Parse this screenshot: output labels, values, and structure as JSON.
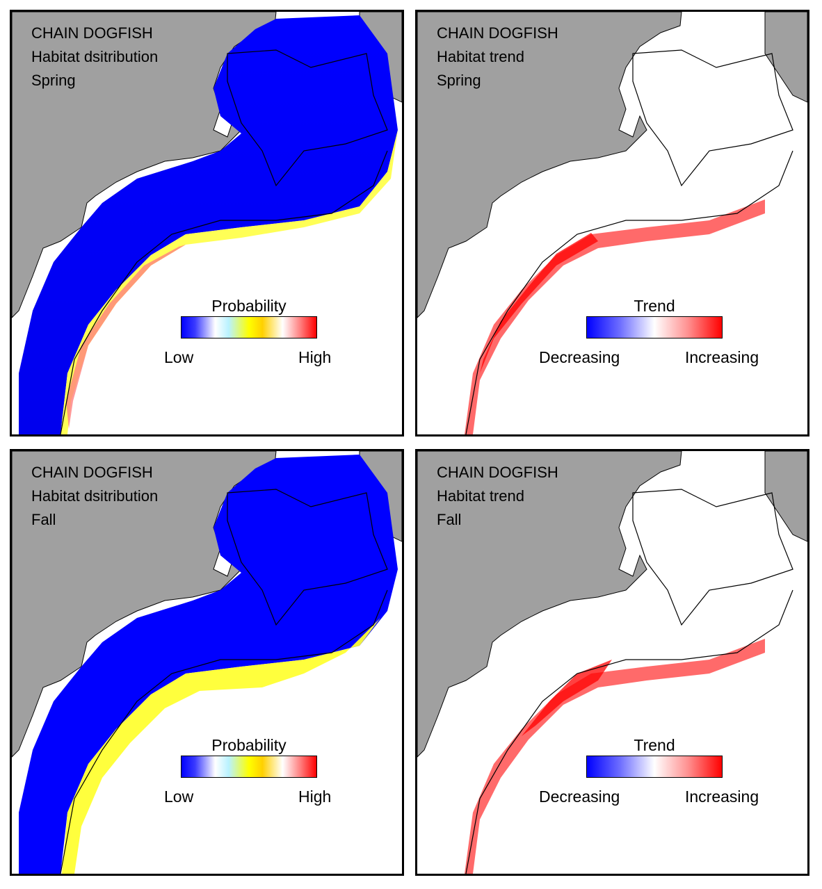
{
  "panels": [
    {
      "species": "CHAIN DOGFISH",
      "kind": "Habitat dsitribution",
      "season": "Spring",
      "legend": {
        "title": "Probability",
        "low": "Low",
        "high": "High",
        "gradient": [
          "#0000ff",
          "#3a3aff",
          "#ffffff",
          "#b9f2ff",
          "#ffff00",
          "#ffd000",
          "#ffffff",
          "#ff8080",
          "#ff0000"
        ]
      }
    },
    {
      "species": "CHAIN DOGFISH",
      "kind": "Habitat trend",
      "season": "Spring",
      "legend": {
        "title": "Trend",
        "low": "Decreasing",
        "high": "Increasing",
        "gradient": [
          "#0000ff",
          "#7070ff",
          "#ffffff",
          "#ff9090",
          "#ff0000"
        ]
      }
    },
    {
      "species": "CHAIN DOGFISH",
      "kind": "Habitat dsitribution",
      "season": "Fall",
      "legend": {
        "title": "Probability",
        "low": "Low",
        "high": "High",
        "gradient": [
          "#0000ff",
          "#3a3aff",
          "#ffffff",
          "#b9f2ff",
          "#ffff00",
          "#ffd000",
          "#ffffff",
          "#ff8080",
          "#ff0000"
        ]
      }
    },
    {
      "species": "CHAIN DOGFISH",
      "kind": "Habitat trend",
      "season": "Fall",
      "legend": {
        "title": "Trend",
        "low": "Decreasing",
        "high": "Increasing",
        "gradient": [
          "#0000ff",
          "#7070ff",
          "#ffffff",
          "#ff9090",
          "#ff0000"
        ]
      }
    }
  ],
  "colors": {
    "land": "#a0a0a0",
    "coast": "#000000",
    "water": "#ffffff",
    "habitat_blue": "#0000ff"
  }
}
